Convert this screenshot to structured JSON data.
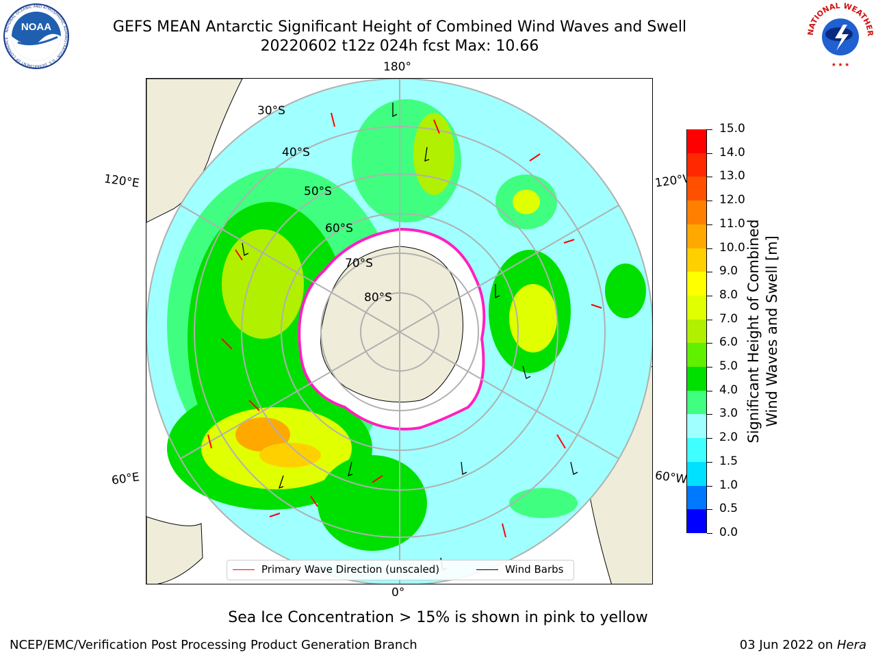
{
  "header": {
    "title": "GEFS MEAN Antarctic Significant Height of Combined Wind Waves and Swell",
    "subtitle": "20220602 t12z 024h fcst   Max: 10.66"
  },
  "logos": {
    "left": {
      "name": "noaa-logo",
      "text": "NOAA",
      "ring_text": "NATIONAL OCEANIC AND ATMOSPHERIC ADMINISTRATION · U.S. DEPARTMENT OF COMMERCE"
    },
    "right": {
      "name": "nws-logo",
      "ring_text": "NATIONAL WEATHER SERVICE"
    }
  },
  "map": {
    "projection": "south-polar-stereographic",
    "longitude_labels": {
      "top": "180°",
      "bottom": "0°",
      "upper_left": "120°E",
      "upper_right": "120°W",
      "lower_left": "60°E",
      "lower_right": "60°W"
    },
    "latitude_labels": [
      "30°S",
      "40°S",
      "50°S",
      "60°S",
      "70°S",
      "80°S"
    ]
  },
  "legend": {
    "wave_direction": "Primary Wave Direction (unscaled)",
    "wind_barbs": "Wind Barbs"
  },
  "colorbar": {
    "label_line1": "Significant Height of Combined",
    "label_line2": "Wind Waves and Swell [m]",
    "ticks": [
      "15.0",
      "14.0",
      "13.0",
      "12.0",
      "11.0",
      "10.0",
      "9.0",
      "8.0",
      "7.0",
      "6.0",
      "5.0",
      "4.0",
      "3.0",
      "2.0",
      "1.5",
      "1.0",
      "0.5",
      "0.0"
    ],
    "colors": [
      "#0000ff",
      "#0078ff",
      "#00e0ff",
      "#40ffff",
      "#a0ffff",
      "#40ff80",
      "#00e000",
      "#60f000",
      "#b0f000",
      "#e0ff00",
      "#ffff00",
      "#ffd000",
      "#ffa800",
      "#ff8000",
      "#ff5000",
      "#ff2800",
      "#ff0000"
    ]
  },
  "notes": {
    "sea_ice": "Sea Ice Concentration > 15% is shown in pink to yellow"
  },
  "footer": {
    "left": "NCEP/EMC/Verification Post Processing Product Generation Branch",
    "right_date": "03 Jun 2022 on",
    "right_host": "Hera"
  }
}
